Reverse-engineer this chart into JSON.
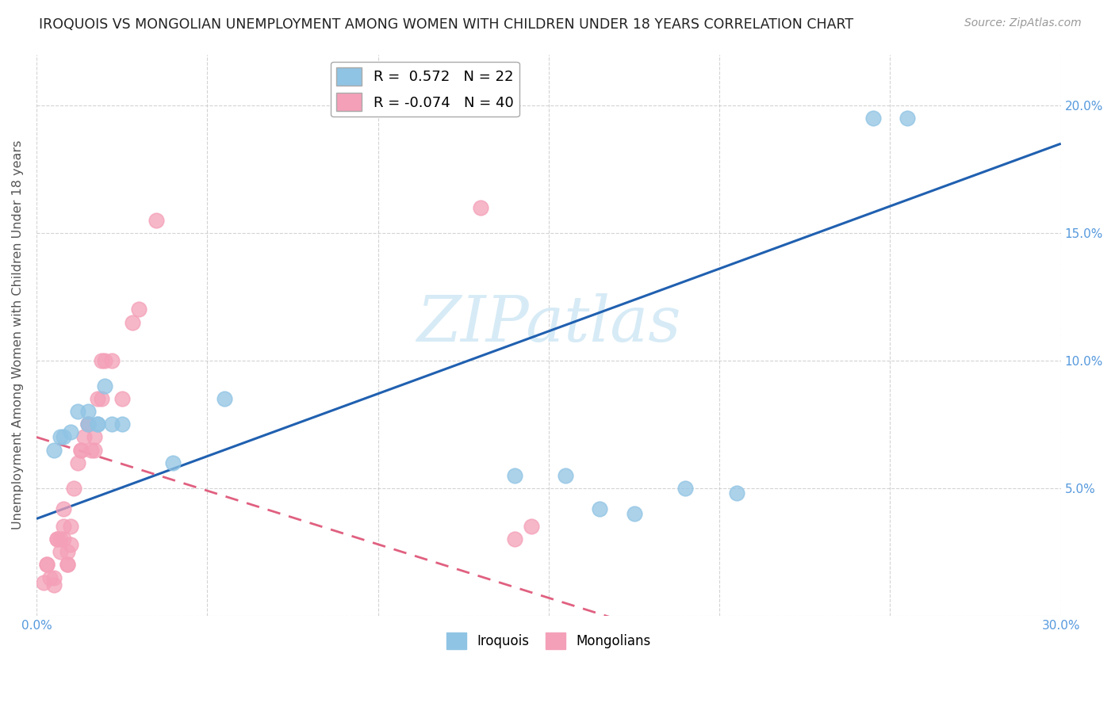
{
  "title": "IROQUOIS VS MONGOLIAN UNEMPLOYMENT AMONG WOMEN WITH CHILDREN UNDER 18 YEARS CORRELATION CHART",
  "source": "Source: ZipAtlas.com",
  "ylabel": "Unemployment Among Women with Children Under 18 years",
  "xlim": [
    0.0,
    0.3
  ],
  "ylim": [
    0.0,
    0.22
  ],
  "xticks": [
    0.0,
    0.05,
    0.1,
    0.15,
    0.2,
    0.25,
    0.3
  ],
  "xticklabels": [
    "0.0%",
    "",
    "",
    "",
    "",
    "",
    "30.0%"
  ],
  "yticks": [
    0.0,
    0.05,
    0.1,
    0.15,
    0.2
  ],
  "right_yticklabels": [
    "",
    "5.0%",
    "10.0%",
    "15.0%",
    "20.0%"
  ],
  "iroquois_color": "#90c4e4",
  "mongolians_color": "#f4a0b8",
  "iroquois_R": 0.572,
  "iroquois_N": 22,
  "mongolians_R": -0.074,
  "mongolians_N": 40,
  "iroquois_x": [
    0.005,
    0.007,
    0.008,
    0.01,
    0.012,
    0.015,
    0.015,
    0.018,
    0.018,
    0.02,
    0.022,
    0.025,
    0.04,
    0.055,
    0.14,
    0.155,
    0.165,
    0.175,
    0.19,
    0.205,
    0.245,
    0.255
  ],
  "iroquois_y": [
    0.065,
    0.07,
    0.07,
    0.072,
    0.08,
    0.075,
    0.08,
    0.075,
    0.075,
    0.09,
    0.075,
    0.075,
    0.06,
    0.085,
    0.055,
    0.055,
    0.042,
    0.04,
    0.05,
    0.048,
    0.195,
    0.195
  ],
  "mongolians_x": [
    0.002,
    0.003,
    0.003,
    0.004,
    0.005,
    0.005,
    0.006,
    0.006,
    0.007,
    0.007,
    0.008,
    0.008,
    0.008,
    0.009,
    0.009,
    0.009,
    0.01,
    0.01,
    0.011,
    0.012,
    0.013,
    0.013,
    0.014,
    0.015,
    0.015,
    0.016,
    0.017,
    0.017,
    0.018,
    0.019,
    0.019,
    0.02,
    0.022,
    0.025,
    0.028,
    0.03,
    0.035,
    0.13,
    0.14,
    0.145
  ],
  "mongolians_y": [
    0.013,
    0.02,
    0.02,
    0.015,
    0.012,
    0.015,
    0.03,
    0.03,
    0.025,
    0.03,
    0.03,
    0.035,
    0.042,
    0.02,
    0.02,
    0.025,
    0.028,
    0.035,
    0.05,
    0.06,
    0.065,
    0.065,
    0.07,
    0.075,
    0.075,
    0.065,
    0.065,
    0.07,
    0.085,
    0.085,
    0.1,
    0.1,
    0.1,
    0.085,
    0.115,
    0.12,
    0.155,
    0.16,
    0.03,
    0.035
  ],
  "background_color": "#ffffff",
  "grid_color": "#c8c8c8",
  "watermark_text": "ZIPatlas",
  "watermark_color": "#d0e8f5",
  "iroquois_trendline_color": "#2060b0",
  "mongolians_trendline_color": "#e06080",
  "iroquois_trend_intercept": 0.038,
  "iroquois_trend_slope": 0.49,
  "mongolians_trend_intercept": 0.07,
  "mongolians_trend_slope": -0.42
}
